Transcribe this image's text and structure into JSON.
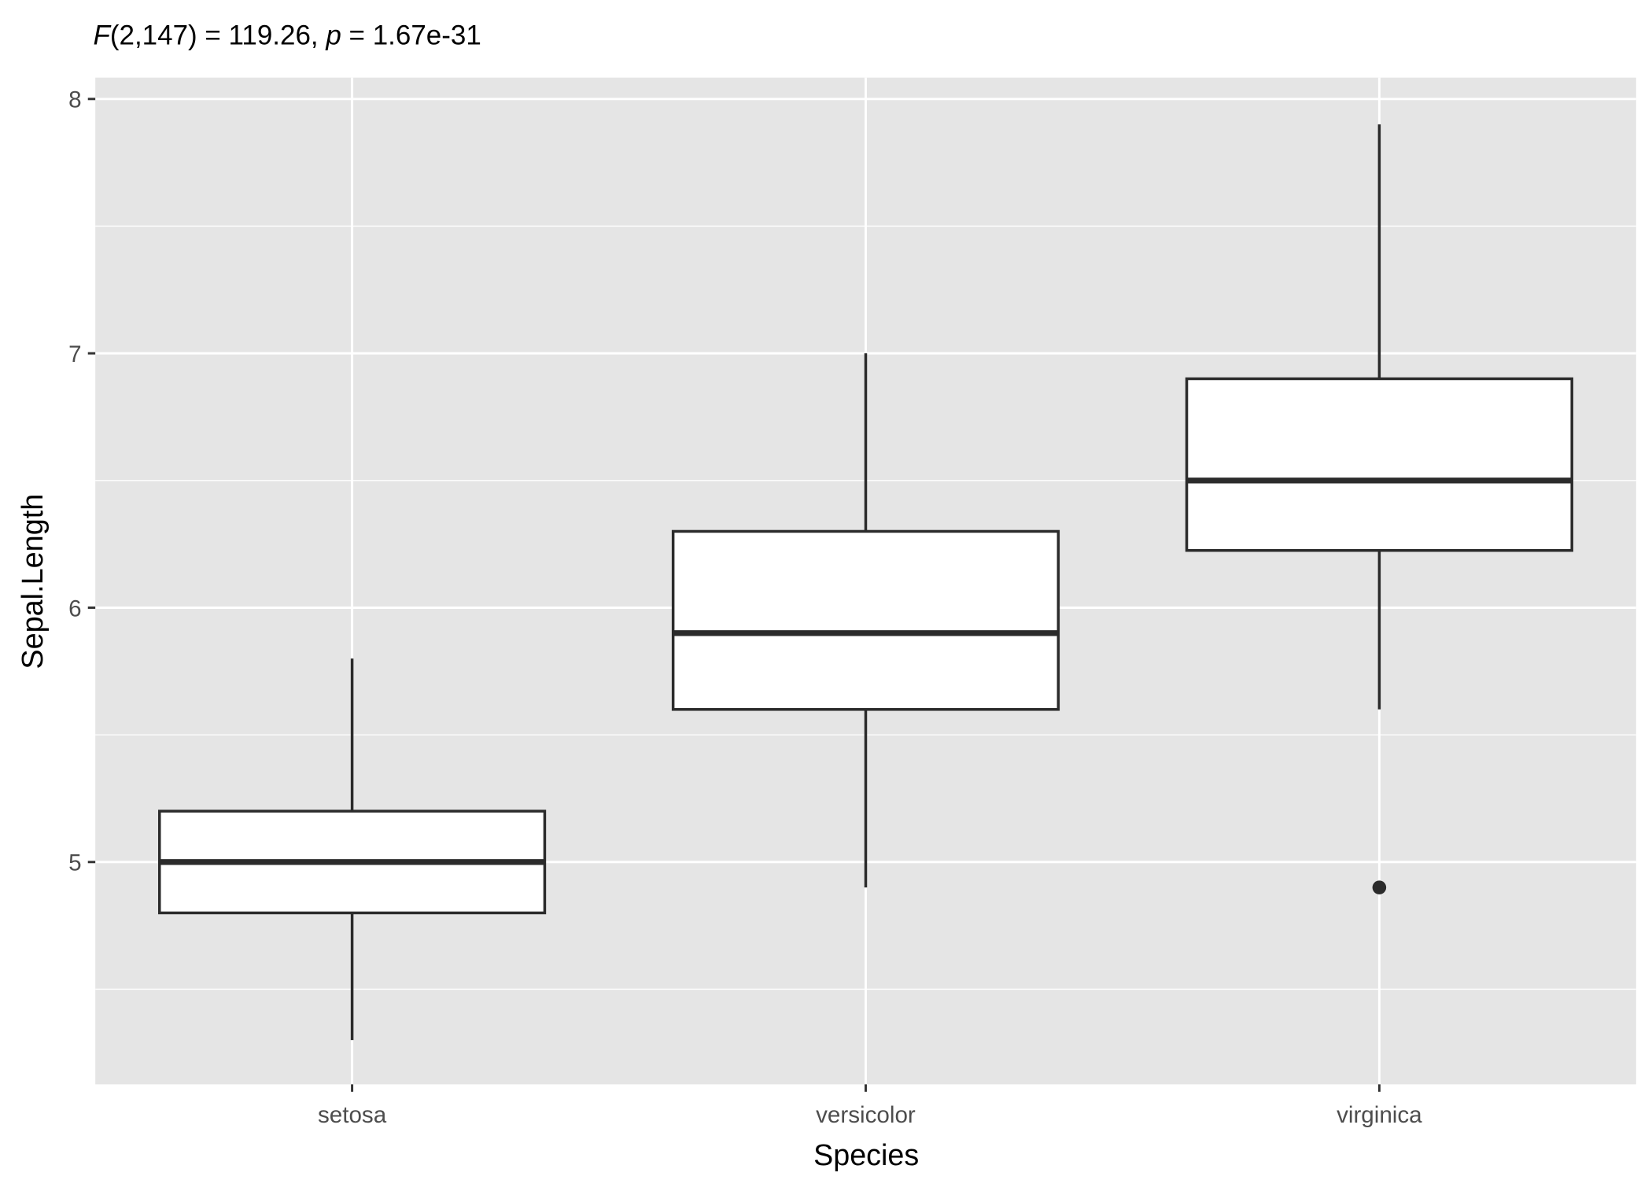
{
  "chart_data": {
    "type": "box",
    "title": {
      "stat_symbol": "F",
      "stat_args": "(2,147) = 119.26, ",
      "p_symbol": "p",
      "p_text": " = 1.67e-31"
    },
    "xlabel": "Species",
    "ylabel": "Sepal.Length",
    "categories": [
      "setosa",
      "versicolor",
      "virginica"
    ],
    "yticks": [
      5,
      6,
      7,
      8
    ],
    "ylim": [
      4.126,
      8.084
    ],
    "grid": true,
    "boxes": [
      {
        "category": "setosa",
        "whisker_low": 4.3,
        "q1": 4.8,
        "median": 5.0,
        "q3": 5.2,
        "whisker_high": 5.8,
        "outliers": []
      },
      {
        "category": "versicolor",
        "whisker_low": 4.9,
        "q1": 5.6,
        "median": 5.9,
        "q3": 6.3,
        "whisker_high": 7.0,
        "outliers": []
      },
      {
        "category": "virginica",
        "whisker_low": 5.6,
        "q1": 6.225,
        "median": 6.5,
        "q3": 6.9,
        "whisker_high": 7.9,
        "outliers": [
          4.9
        ]
      }
    ],
    "colors": {
      "panel": "#e5e5e5",
      "grid": "#ffffff",
      "box_fill": "#ffffff",
      "box_stroke": "#2b2b2b",
      "text": "#4d4d4d"
    }
  }
}
